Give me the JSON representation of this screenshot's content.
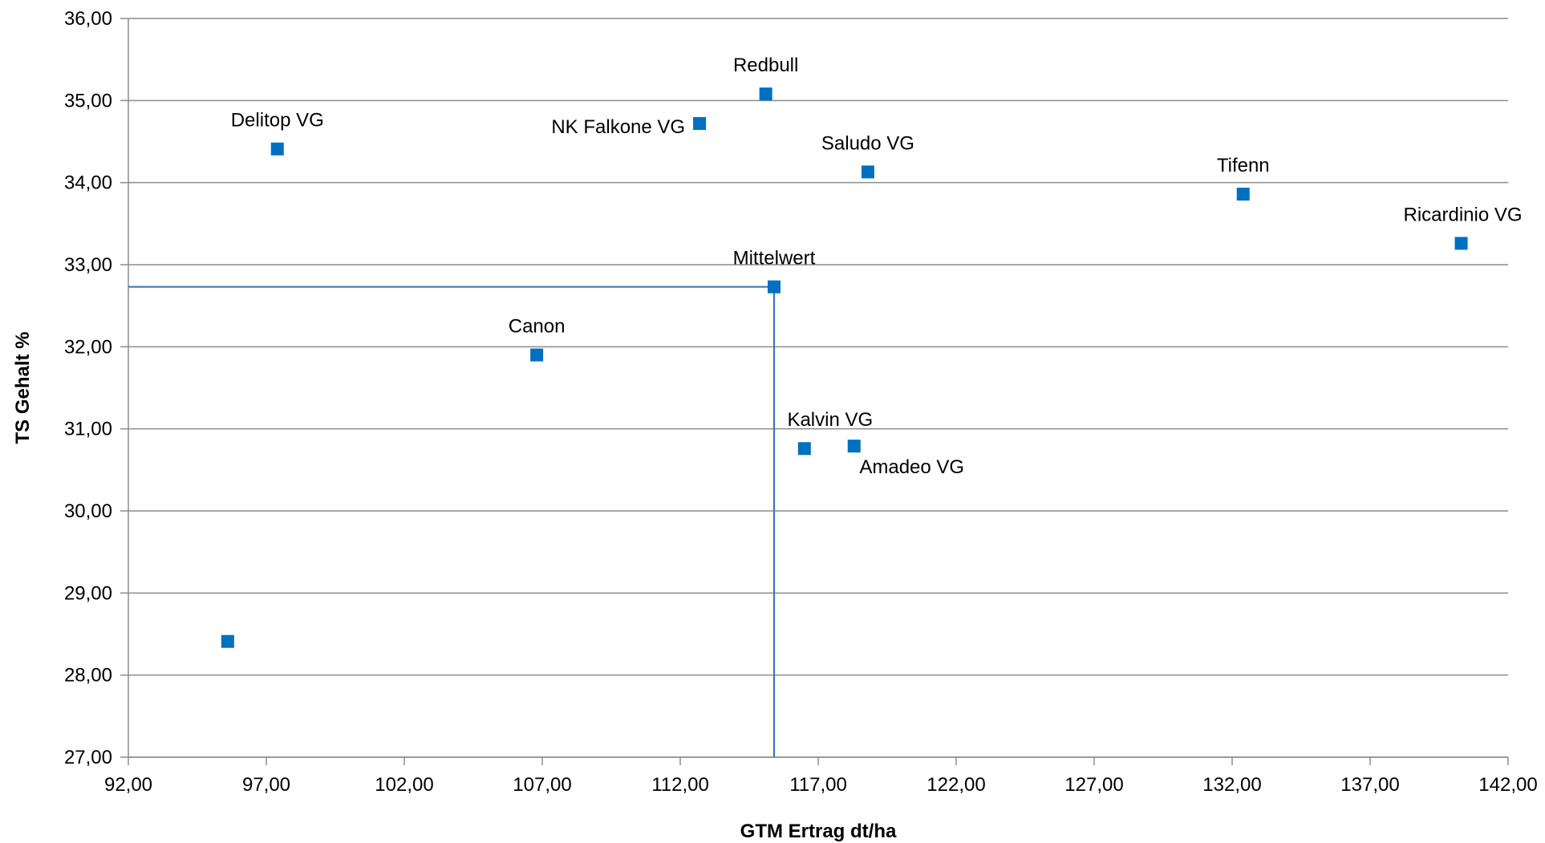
{
  "chart_data": {
    "type": "scatter",
    "title": "",
    "xlabel": "GTM Ertrag dt/ha",
    "ylabel": "TS Gehalt %",
    "xlim": [
      92,
      142
    ],
    "ylim": [
      27,
      36
    ],
    "x_ticks": [
      "92,00",
      "97,00",
      "102,00",
      "107,00",
      "112,00",
      "117,00",
      "122,00",
      "127,00",
      "132,00",
      "137,00",
      "142,00"
    ],
    "y_ticks": [
      "27,00",
      "28,00",
      "29,00",
      "30,00",
      "31,00",
      "32,00",
      "33,00",
      "34,00",
      "35,00",
      "36,00"
    ],
    "grid": "horizontal",
    "marker": "square",
    "marker_color": "#0070C0",
    "reference_lines_color": "#2E75B6",
    "gridline_color": "#8C8C8C",
    "points": [
      {
        "label": "Delitop VG",
        "x": 97.4,
        "y": 34.41
      },
      {
        "label": "NK Falkone VG",
        "x": 112.7,
        "y": 34.72
      },
      {
        "label": "Redbull",
        "x": 115.1,
        "y": 35.08
      },
      {
        "label": "Saludo VG",
        "x": 118.8,
        "y": 34.13
      },
      {
        "label": "Tifenn",
        "x": 132.4,
        "y": 33.86
      },
      {
        "label": "Ricardinio VG",
        "x": 140.3,
        "y": 33.26
      },
      {
        "label": "Mittelwert",
        "x": 115.4,
        "y": 32.73
      },
      {
        "label": "Canon",
        "x": 106.8,
        "y": 31.9
      },
      {
        "label": "Kalvin VG",
        "x": 116.5,
        "y": 30.76
      },
      {
        "label": "Amadeo VG",
        "x": 118.3,
        "y": 30.79
      },
      {
        "label": "",
        "x": 95.6,
        "y": 28.41
      }
    ],
    "mean_reference": {
      "x": 115.4,
      "y": 32.73
    }
  }
}
